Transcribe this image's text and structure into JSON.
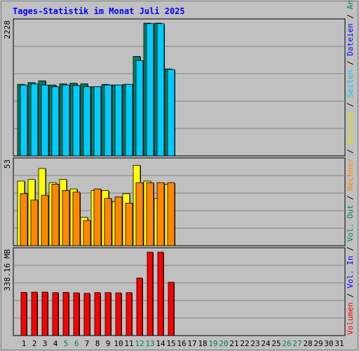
{
  "chart_data": {
    "type": "bar",
    "title": "Tages-Statistik im Monat Juli 2025",
    "days": [
      "1",
      "2",
      "3",
      "4",
      "5",
      "6",
      "7",
      "8",
      "9",
      "10",
      "11",
      "12",
      "13",
      "14",
      "15",
      "16",
      "17",
      "18",
      "19",
      "20",
      "21",
      "22",
      "23",
      "24",
      "25",
      "26",
      "27",
      "28",
      "29",
      "30",
      "31"
    ],
    "weekend_days": [
      "5",
      "6",
      "12",
      "13",
      "19",
      "20",
      "26",
      "27"
    ],
    "panels": [
      {
        "id": "requests",
        "max_label": "2228",
        "max": 2228,
        "series": [
          {
            "name": "Anfragen",
            "color": "#008060",
            "values": [
              1200,
              1230,
              1260,
              1190,
              1210,
              1220,
              1210,
              1160,
              1200,
              1190,
              1200,
              1670,
              2228,
              2228,
              1460
            ]
          },
          {
            "name": "Dateien",
            "color": "#00ccff",
            "values": [
              1190,
              1210,
              1190,
              1160,
              1190,
              1180,
              1160,
              1160,
              1190,
              1190,
              1200,
              1600,
              2220,
              2220,
              1450
            ]
          }
        ]
      },
      {
        "id": "visits",
        "max_label": "53",
        "max": 53,
        "series": [
          {
            "name": "Besuche",
            "color": "#ffff00",
            "values": [
              41,
              42,
              49,
              40,
              42,
              36,
              18,
              35,
              35,
              28,
              33,
              51,
              41,
              30,
              39
            ]
          },
          {
            "name": "Rechner",
            "color": "#ff8800",
            "values": [
              33,
              29,
              32,
              39,
              35,
              34,
              16,
              36,
              30,
              31,
              27,
              40,
              40,
              40,
              40
            ]
          }
        ]
      },
      {
        "id": "volume",
        "max_label": "338.16 MB",
        "max": 338.16,
        "series": [
          {
            "name": "Volumen",
            "color": "#ff0000",
            "values": [
              175,
              176,
              176,
              174,
              175,
              173,
              171,
              174,
              174,
              173,
              174,
              233,
              338,
              338,
              216
            ]
          }
        ]
      }
    ],
    "legend": [
      {
        "text": "Volumen",
        "color": "#ff0000"
      },
      {
        "text": "/",
        "color": "#000000"
      },
      {
        "text": "Vol. In",
        "color": "#0000ff"
      },
      {
        "text": "/",
        "color": "#000000"
      },
      {
        "text": "Vol. Out",
        "color": "#008060"
      },
      {
        "text": "/",
        "color": "#000000"
      },
      {
        "text": "Rechner",
        "color": "#ff8800"
      },
      {
        "text": "/",
        "color": "#000000"
      },
      {
        "text": "Besuche",
        "color": "#e0e000"
      },
      {
        "text": "/",
        "color": "#000000"
      },
      {
        "text": "Seiten",
        "color": "#00ccff"
      },
      {
        "text": "/",
        "color": "#000000"
      },
      {
        "text": "Dateien",
        "color": "#0000ff"
      },
      {
        "text": "/",
        "color": "#000000"
      },
      {
        "text": "Anfragen",
        "color": "#008060"
      }
    ],
    "colors": {
      "background": "#c0c0c0",
      "plot_background": "#c0c0c0",
      "grid": "#808080",
      "title": "#0000ff",
      "weekday_label": "#000000",
      "weekend_label": "#008060"
    }
  }
}
